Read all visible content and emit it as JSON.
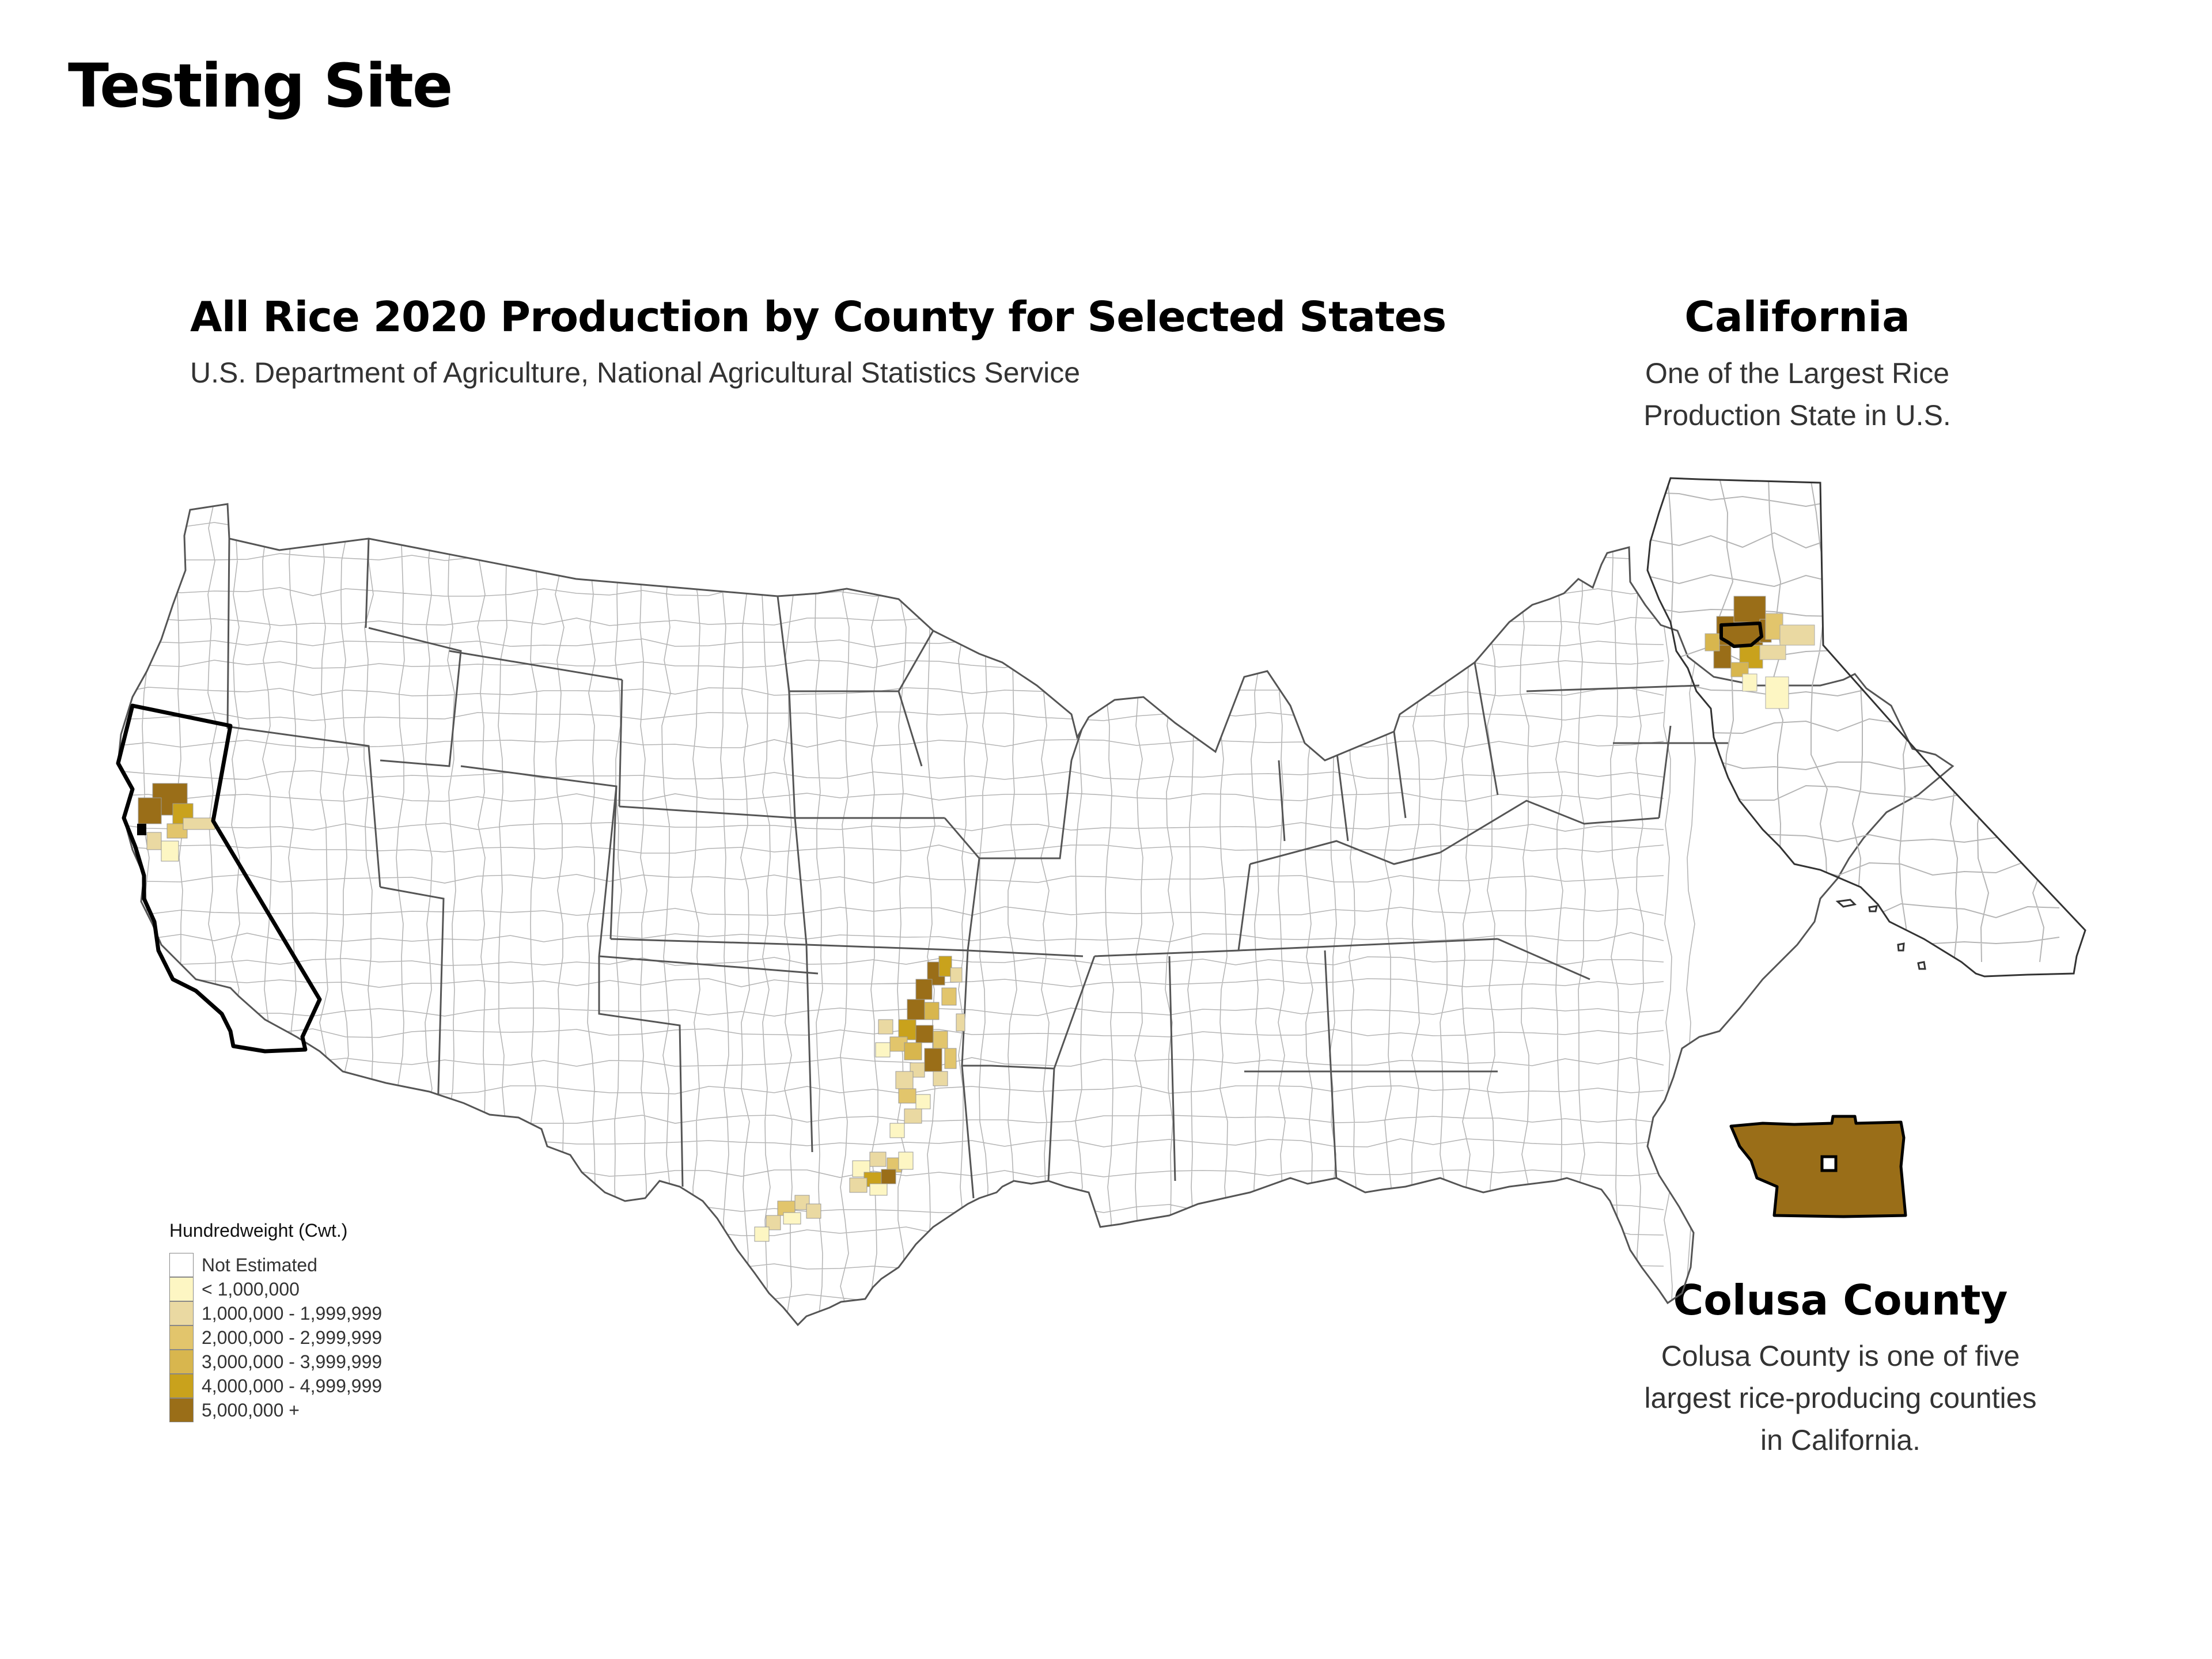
{
  "page_title": "Testing Site",
  "main_map": {
    "title": "All Rice 2020 Production by County for Selected States",
    "subtitle": "U.S. Department of Agriculture, National Agricultural Statistics Service"
  },
  "california": {
    "title": "California",
    "subtitle_line1": "One of the Largest Rice",
    "subtitle_line2": "Production State in U.S."
  },
  "colusa": {
    "title": "Colusa County",
    "desc_line1": "Colusa County is one of five",
    "desc_line2": "largest rice-producing counties",
    "desc_line3": "in California."
  },
  "legend": {
    "title": "Hundredweight (Cwt.)",
    "items": [
      {
        "label": "Not Estimated",
        "color": "#ffffff"
      },
      {
        "label": "< 1,000,000",
        "color": "#fdf6c3"
      },
      {
        "label": "1,000,000 - 1,999,999",
        "color": "#ead9a2"
      },
      {
        "label": "2,000,000 - 2,999,999",
        "color": "#e2c56c"
      },
      {
        "label": "3,000,000 - 3,999,999",
        "color": "#d8b64e"
      },
      {
        "label": "4,000,000 - 4,999,999",
        "color": "#c9a21c"
      },
      {
        "label": "5,000,000 +",
        "color": "#9a6e18"
      }
    ]
  },
  "colors": {
    "highest": "#9a6e18",
    "county_line": "#b5b5b5",
    "state_line": "#555555",
    "highlight": "#000000"
  }
}
